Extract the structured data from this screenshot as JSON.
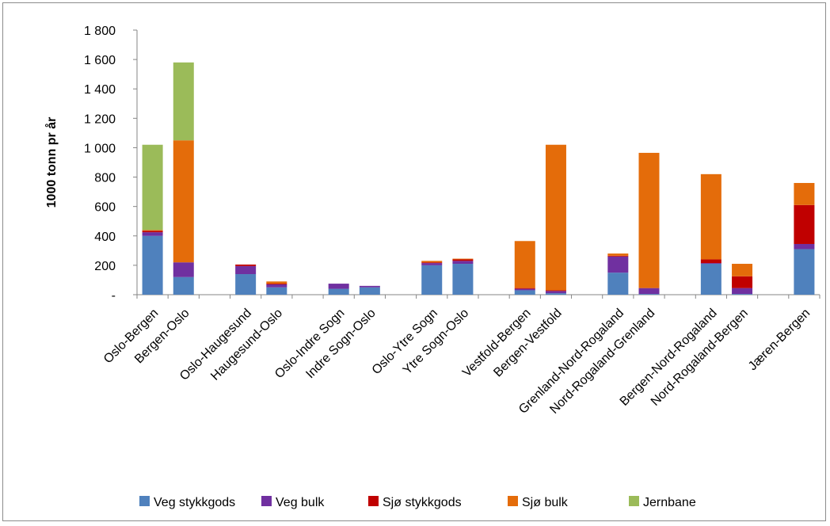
{
  "chart_data": {
    "type": "bar",
    "stacked": true,
    "title": "",
    "xlabel": "",
    "ylabel": "1000 tonn pr år",
    "ylim": [
      0,
      1800
    ],
    "yticks": [
      {
        "value": 0,
        "label": "-"
      },
      {
        "value": 200,
        "label": "200"
      },
      {
        "value": 400,
        "label": "400"
      },
      {
        "value": 600,
        "label": "600"
      },
      {
        "value": 800,
        "label": "800"
      },
      {
        "value": 1000,
        "label": "1 000"
      },
      {
        "value": 1200,
        "label": "1 200"
      },
      {
        "value": 1400,
        "label": "1 400"
      },
      {
        "value": 1600,
        "label": "1 600"
      },
      {
        "value": 1800,
        "label": "1 800"
      }
    ],
    "grid": false,
    "legend_position": "bottom",
    "categories": [
      "Oslo-Bergen",
      "Bergen-Oslo",
      "",
      "Oslo-Haugesund",
      "Haugesund-Oslo",
      "",
      "Oslo-Indre Sogn",
      "Indre Sogn-Oslo",
      "",
      "Oslo-Ytre Sogn",
      "Ytre Sogn-Oslo",
      "",
      "Vestfold-Bergen",
      "Bergen-Vestfold",
      "",
      "Grenland-Nord-Rogaland",
      "Nord-Rogaland-Grenland",
      "",
      "Bergen-Nord-Rogaland",
      "Nord-Rogaland-Bergen",
      "",
      "Jæren-Bergen"
    ],
    "series": [
      {
        "name": "Veg stykkgods",
        "color": "#4f81bd",
        "values": [
          400,
          120,
          0,
          140,
          50,
          0,
          40,
          50,
          0,
          200,
          210,
          0,
          30,
          10,
          0,
          150,
          5,
          0,
          210,
          5,
          0,
          310
        ]
      },
      {
        "name": "Veg bulk",
        "color": "#7030a0",
        "values": [
          25,
          100,
          0,
          55,
          20,
          0,
          35,
          10,
          0,
          15,
          20,
          0,
          10,
          15,
          0,
          110,
          40,
          0,
          5,
          40,
          0,
          35
        ]
      },
      {
        "name": "Sjø stykkgods",
        "color": "#c00000",
        "values": [
          10,
          0,
          0,
          10,
          5,
          0,
          0,
          0,
          0,
          5,
          10,
          0,
          5,
          5,
          0,
          5,
          0,
          0,
          25,
          80,
          0,
          265
        ]
      },
      {
        "name": "Sjø bulk",
        "color": "#e46c0a",
        "values": [
          5,
          830,
          0,
          0,
          15,
          0,
          0,
          0,
          0,
          10,
          5,
          0,
          320,
          990,
          0,
          15,
          920,
          0,
          580,
          85,
          0,
          150
        ]
      },
      {
        "name": "Jernbane",
        "color": "#9bbb59",
        "values": [
          580,
          530,
          0,
          0,
          0,
          0,
          0,
          0,
          0,
          0,
          0,
          0,
          0,
          0,
          0,
          0,
          0,
          0,
          0,
          0,
          0,
          0
        ]
      }
    ]
  }
}
